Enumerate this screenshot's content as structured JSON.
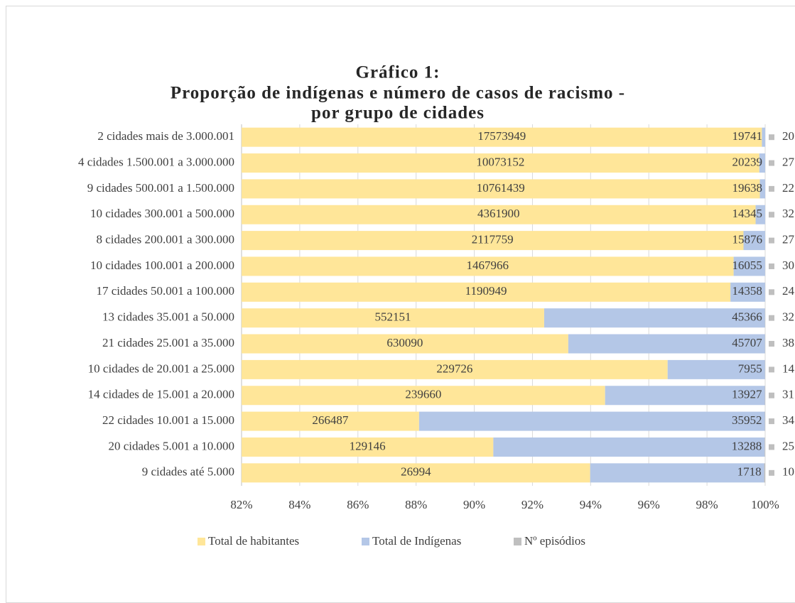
{
  "chart_data": {
    "type": "stacked_bar_100_horizontal",
    "title": [
      "Gráfico 1:",
      "Proporção de indígenas e número de casos de racismo -",
      "por grupo de cidades"
    ],
    "categories": [
      "2 cidades mais de 3.000.001",
      "4 cidades 1.500.001 a 3.000.000",
      "9 cidades 500.001 a 1.500.000",
      "10 cidades 300.001 a 500.000",
      "8 cidades 200.001 a 300.000",
      "10 cidades 100.001 a 200.000",
      "17 cidades 50.001 a 100.000",
      "13 cidades 35.001 a 50.000",
      "21 cidades 25.001 a 35.000",
      "10 cidades de 20.001 a 25.000",
      "14 cidades de 15.001 a 20.000",
      "22 cidades 10.001 a 15.000",
      "20 cidades 5.001 a 10.000",
      "9 cidades até 5.000"
    ],
    "series": [
      {
        "name": "Total de habitantes",
        "color": "#ffe699",
        "values": [
          17573949,
          10073152,
          10761439,
          4361900,
          2117759,
          1467966,
          1190949,
          552151,
          630090,
          229726,
          239660,
          266487,
          129146,
          26994
        ]
      },
      {
        "name": "Total de Indígenas",
        "color": "#b4c7e7",
        "values": [
          19741,
          20239,
          19638,
          14345,
          15876,
          16055,
          14358,
          45366,
          45707,
          7955,
          13927,
          35952,
          13288,
          1718
        ]
      },
      {
        "name": "Nº episódios",
        "color": "#bfbfbf",
        "values": [
          20,
          27,
          22,
          32,
          27,
          30,
          24,
          32,
          38,
          14,
          31,
          34,
          25,
          10
        ]
      }
    ],
    "xlim": [
      82,
      100
    ],
    "xticks": [
      {
        "value": 82,
        "label": "82%"
      },
      {
        "value": 84,
        "label": "84%"
      },
      {
        "value": 86,
        "label": "86%"
      },
      {
        "value": 88,
        "label": "88%"
      },
      {
        "value": 90,
        "label": "90%"
      },
      {
        "value": 92,
        "label": "92%"
      },
      {
        "value": 94,
        "label": "94%"
      },
      {
        "value": 96,
        "label": "96%"
      },
      {
        "value": 98,
        "label": "98%"
      },
      {
        "value": 100,
        "label": "100%"
      }
    ],
    "grid": true,
    "legend": "bottom"
  }
}
